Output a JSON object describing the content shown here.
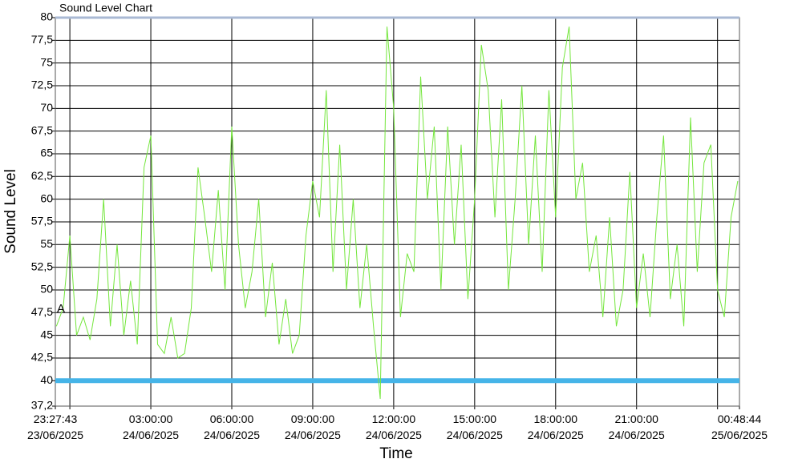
{
  "chart_data": {
    "type": "line",
    "title": "Sound Level Chart",
    "ylabel": "Sound Level",
    "xlabel": "Time",
    "annotation": "A",
    "xlim": [
      "2025-06-23T23:27:43",
      "2025-06-25T00:48:44"
    ],
    "ylim": [
      37.2,
      80
    ],
    "yticks": [
      {
        "value": 37.2,
        "label": "37,2"
      },
      40,
      {
        "value": 42.5,
        "label": "42,5"
      },
      45,
      {
        "value": 47.5,
        "label": "47,5"
      },
      50,
      {
        "value": 52.5,
        "label": "52,5"
      },
      55,
      {
        "value": 57.5,
        "label": "57,5"
      },
      60,
      {
        "value": 62.5,
        "label": "62,5"
      },
      65,
      {
        "value": 67.5,
        "label": "67,5"
      },
      70,
      {
        "value": 72.5,
        "label": "72,5"
      },
      75,
      {
        "value": 77.5,
        "label": "77,5"
      },
      80
    ],
    "xticks": [
      {
        "value": "2025-06-23T23:27:43",
        "label": [
          "23:27:43",
          "23/06/2025"
        ]
      },
      {
        "value": "2025-06-24T00:00:00",
        "label": null
      },
      {
        "value": "2025-06-24T03:00:00",
        "label": [
          "03:00:00",
          "24/06/2025"
        ]
      },
      {
        "value": "2025-06-24T06:00:00",
        "label": [
          "06:00:00",
          "24/06/2025"
        ]
      },
      {
        "value": "2025-06-24T09:00:00",
        "label": [
          "09:00:00",
          "24/06/2025"
        ]
      },
      {
        "value": "2025-06-24T12:00:00",
        "label": [
          "12:00:00",
          "24/06/2025"
        ]
      },
      {
        "value": "2025-06-24T15:00:00",
        "label": [
          "15:00:00",
          "24/06/2025"
        ]
      },
      {
        "value": "2025-06-24T18:00:00",
        "label": [
          "18:00:00",
          "24/06/2025"
        ]
      },
      {
        "value": "2025-06-24T21:00:00",
        "label": [
          "21:00:00",
          "24/06/2025"
        ]
      },
      {
        "value": "2025-06-25T00:00:00",
        "label": null
      },
      {
        "value": "2025-06-25T00:48:44",
        "label": [
          "00:48:44",
          "25/06/2025"
        ]
      }
    ],
    "grid": true,
    "threshold": {
      "value": 40,
      "color": "#45b4e8"
    },
    "x": [
      "2025-06-23T23:30:00",
      "2025-06-23T23:45:00",
      "2025-06-24T00:00:00",
      "2025-06-24T00:15:00",
      "2025-06-24T00:30:00",
      "2025-06-24T00:45:00",
      "2025-06-24T01:00:00",
      "2025-06-24T01:15:00",
      "2025-06-24T01:30:00",
      "2025-06-24T01:45:00",
      "2025-06-24T02:00:00",
      "2025-06-24T02:15:00",
      "2025-06-24T02:30:00",
      "2025-06-24T02:45:00",
      "2025-06-24T03:00:00",
      "2025-06-24T03:15:00",
      "2025-06-24T03:30:00",
      "2025-06-24T03:45:00",
      "2025-06-24T04:00:00",
      "2025-06-24T04:15:00",
      "2025-06-24T04:30:00",
      "2025-06-24T04:45:00",
      "2025-06-24T05:00:00",
      "2025-06-24T05:15:00",
      "2025-06-24T05:30:00",
      "2025-06-24T05:45:00",
      "2025-06-24T06:00:00",
      "2025-06-24T06:15:00",
      "2025-06-24T06:30:00",
      "2025-06-24T06:45:00",
      "2025-06-24T07:00:00",
      "2025-06-24T07:15:00",
      "2025-06-24T07:30:00",
      "2025-06-24T07:45:00",
      "2025-06-24T08:00:00",
      "2025-06-24T08:15:00",
      "2025-06-24T08:30:00",
      "2025-06-24T08:45:00",
      "2025-06-24T09:00:00",
      "2025-06-24T09:15:00",
      "2025-06-24T09:30:00",
      "2025-06-24T09:45:00",
      "2025-06-24T10:00:00",
      "2025-06-24T10:15:00",
      "2025-06-24T10:30:00",
      "2025-06-24T10:45:00",
      "2025-06-24T11:00:00",
      "2025-06-24T11:15:00",
      "2025-06-24T11:30:00",
      "2025-06-24T11:45:00",
      "2025-06-24T12:00:00",
      "2025-06-24T12:15:00",
      "2025-06-24T12:30:00",
      "2025-06-24T12:45:00",
      "2025-06-24T13:00:00",
      "2025-06-24T13:15:00",
      "2025-06-24T13:30:00",
      "2025-06-24T13:45:00",
      "2025-06-24T14:00:00",
      "2025-06-24T14:15:00",
      "2025-06-24T14:30:00",
      "2025-06-24T14:45:00",
      "2025-06-24T15:00:00",
      "2025-06-24T15:15:00",
      "2025-06-24T15:30:00",
      "2025-06-24T15:45:00",
      "2025-06-24T16:00:00",
      "2025-06-24T16:15:00",
      "2025-06-24T16:30:00",
      "2025-06-24T16:45:00",
      "2025-06-24T17:00:00",
      "2025-06-24T17:15:00",
      "2025-06-24T17:30:00",
      "2025-06-24T17:45:00",
      "2025-06-24T18:00:00",
      "2025-06-24T18:15:00",
      "2025-06-24T18:30:00",
      "2025-06-24T18:45:00",
      "2025-06-24T19:00:00",
      "2025-06-24T19:15:00",
      "2025-06-24T19:30:00",
      "2025-06-24T19:45:00",
      "2025-06-24T20:00:00",
      "2025-06-24T20:15:00",
      "2025-06-24T20:30:00",
      "2025-06-24T20:45:00",
      "2025-06-24T21:00:00",
      "2025-06-24T21:15:00",
      "2025-06-24T21:30:00",
      "2025-06-24T21:45:00",
      "2025-06-24T22:00:00",
      "2025-06-24T22:15:00",
      "2025-06-24T22:30:00",
      "2025-06-24T22:45:00",
      "2025-06-24T23:00:00",
      "2025-06-24T23:15:00",
      "2025-06-24T23:30:00",
      "2025-06-24T23:45:00",
      "2025-06-25T00:00:00",
      "2025-06-25T00:15:00",
      "2025-06-25T00:30:00",
      "2025-06-25T00:45:00"
    ],
    "series": [
      {
        "name": "Sound Level",
        "color": "#74e63c",
        "values": [
          46,
          48,
          56,
          45,
          47,
          44.5,
          49,
          60,
          46,
          55,
          45,
          51,
          44,
          63.5,
          67,
          44,
          43,
          47,
          42.5,
          43,
          48,
          63.5,
          58,
          52,
          61,
          50,
          68,
          55,
          48,
          52,
          60,
          47,
          53,
          44,
          49,
          43,
          45,
          56,
          62,
          58,
          72,
          52,
          66,
          50,
          60,
          48,
          55,
          46,
          38,
          79,
          70,
          47,
          54,
          52,
          73.5,
          60,
          68,
          50,
          68,
          55,
          66,
          49,
          60,
          77,
          72,
          58,
          71,
          50,
          60,
          72.5,
          55,
          67,
          52,
          72,
          58,
          74.5,
          79,
          60,
          64,
          52,
          56,
          47,
          58,
          46,
          50,
          63,
          48,
          54,
          47,
          58,
          67,
          49,
          55,
          46,
          69,
          52,
          64,
          66,
          50,
          47,
          58,
          62
        ]
      }
    ]
  }
}
